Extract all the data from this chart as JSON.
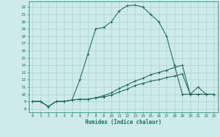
{
  "title": "",
  "xlabel": "Humidex (Indice chaleur)",
  "xlim": [
    -0.5,
    23.5
  ],
  "ylim": [
    7.5,
    22.8
  ],
  "yticks": [
    8,
    9,
    10,
    11,
    12,
    13,
    14,
    15,
    16,
    17,
    18,
    19,
    20,
    21,
    22
  ],
  "xticks": [
    0,
    1,
    2,
    3,
    4,
    5,
    6,
    7,
    8,
    9,
    10,
    11,
    12,
    13,
    14,
    15,
    16,
    17,
    18,
    19,
    20,
    21,
    22,
    23
  ],
  "bg_color": "#ceeaea",
  "grid_color": "#aacfcf",
  "line_color": "#1a6b5a",
  "line1_x": [
    0,
    1,
    2,
    3,
    4,
    5,
    6,
    7,
    8,
    9,
    10,
    11,
    12,
    13,
    14,
    15,
    16,
    17,
    18,
    19,
    20,
    21,
    22,
    23
  ],
  "line1_y": [
    9.0,
    9.0,
    8.3,
    9.0,
    9.0,
    9.2,
    12.0,
    15.5,
    19.0,
    19.2,
    20.0,
    21.5,
    22.2,
    22.3,
    22.0,
    21.0,
    20.0,
    18.0,
    14.0,
    10.0,
    10.0,
    10.0,
    10.0,
    10.0
  ],
  "line2_x": [
    0,
    1,
    2,
    3,
    4,
    5,
    6,
    7,
    8,
    9,
    10,
    11,
    12,
    13,
    14,
    15,
    16,
    17,
    18,
    19,
    20,
    21,
    22,
    23
  ],
  "line2_y": [
    9.0,
    9.0,
    8.3,
    9.0,
    9.0,
    9.2,
    9.3,
    9.3,
    9.5,
    9.8,
    10.2,
    10.8,
    11.3,
    11.8,
    12.2,
    12.7,
    13.0,
    13.3,
    13.7,
    14.0,
    10.0,
    11.0,
    10.0,
    10.0
  ],
  "line3_x": [
    0,
    1,
    2,
    3,
    4,
    5,
    6,
    7,
    8,
    9,
    10,
    11,
    12,
    13,
    14,
    15,
    16,
    17,
    18,
    19,
    20,
    21,
    22,
    23
  ],
  "line3_y": [
    9.0,
    9.0,
    8.3,
    9.0,
    9.0,
    9.2,
    9.3,
    9.3,
    9.5,
    9.6,
    9.9,
    10.3,
    10.7,
    11.2,
    11.5,
    11.8,
    12.0,
    12.3,
    12.5,
    12.8,
    10.0,
    10.0,
    10.0,
    10.0
  ]
}
